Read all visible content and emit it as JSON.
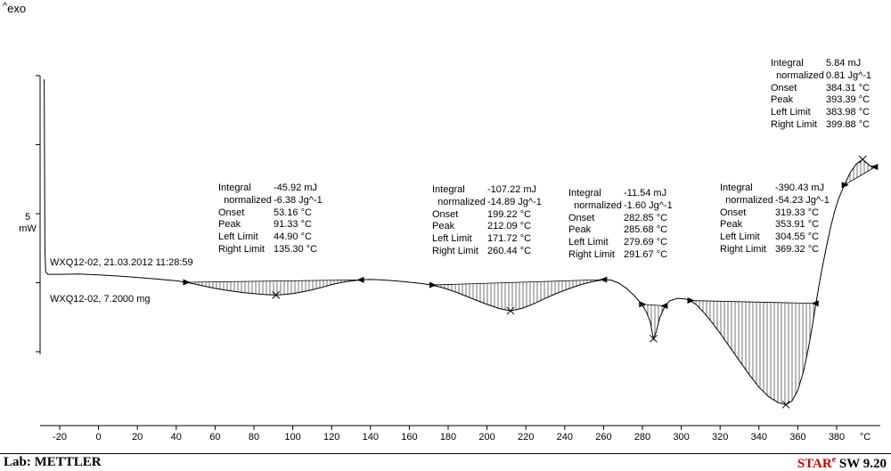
{
  "exo": {
    "caret": "^",
    "label": "exo"
  },
  "scale_bar": {
    "value": "5",
    "unit": "mW"
  },
  "sample_info": {
    "line1": "WXQ12-02, 21.03.2012 11:28:59",
    "line2": "WXQ12-02, 7.2000 mg"
  },
  "footer": {
    "lab": "Lab: METTLER",
    "software_name": "STAR",
    "software_sup": "e",
    "software_version": " SW 9.20"
  },
  "colors": {
    "star_red": "#cc0000",
    "curve": "#000000"
  },
  "annotations": [
    {
      "rows": [
        {
          "label": "Integral",
          "value": "-45.92 mJ"
        },
        {
          "label": "  normalized",
          "value": "-6.38 Jg^-1"
        },
        {
          "label": "Onset",
          "value": "53.16 °C"
        },
        {
          "label": "Peak",
          "value": "91.33 °C"
        },
        {
          "label": "Left Limit",
          "value": "44.90 °C"
        },
        {
          "label": "Right Limit",
          "value": "135.30 °C"
        }
      ]
    },
    {
      "rows": [
        {
          "label": "Integral",
          "value": "-107.22 mJ"
        },
        {
          "label": "  normalized",
          "value": "-14.89 Jg^-1"
        },
        {
          "label": "Onset",
          "value": "199.22 °C"
        },
        {
          "label": "Peak",
          "value": "212.09 °C"
        },
        {
          "label": "Left Limit",
          "value": "171.72 °C"
        },
        {
          "label": "Right Limit",
          "value": "260.44 °C"
        }
      ]
    },
    {
      "rows": [
        {
          "label": "Integral",
          "value": "-11.54 mJ"
        },
        {
          "label": "  normalized",
          "value": "-1.60 Jg^-1"
        },
        {
          "label": "Onset",
          "value": "282.85 °C"
        },
        {
          "label": "Peak",
          "value": "285.68 °C"
        },
        {
          "label": "Left Limit",
          "value": "279.69 °C"
        },
        {
          "label": "Right Limit",
          "value": "291.67 °C"
        }
      ]
    },
    {
      "rows": [
        {
          "label": "Integral",
          "value": "-390.43 mJ"
        },
        {
          "label": "  normalized",
          "value": "-54.23 Jg^-1"
        },
        {
          "label": "Onset",
          "value": "319.33 °C"
        },
        {
          "label": "Peak",
          "value": "353.91 °C"
        },
        {
          "label": "Left Limit",
          "value": "304.55 °C"
        },
        {
          "label": "Right Limit",
          "value": "369.32 °C"
        }
      ]
    },
    {
      "rows": [
        {
          "label": "Integral",
          "value": "5.84 mJ"
        },
        {
          "label": "  normalized",
          "value": "0.81 Jg^-1"
        },
        {
          "label": "Onset",
          "value": "384.31 °C"
        },
        {
          "label": "Peak",
          "value": "393.39 °C"
        },
        {
          "label": "Left Limit",
          "value": "383.98 °C"
        },
        {
          "label": "Right Limit",
          "value": "399.88 °C"
        }
      ]
    }
  ],
  "chart_data": {
    "type": "line",
    "x_unit": "°C",
    "y_unit": "mW",
    "x_range": [
      -30,
      402
    ],
    "x_ticks": [
      -20,
      0,
      20,
      40,
      60,
      80,
      100,
      120,
      140,
      160,
      180,
      200,
      220,
      240,
      260,
      280,
      300,
      320,
      340,
      360,
      380
    ],
    "y_scale_bar_mW": 5,
    "grid": false,
    "series": [
      {
        "name": "WXQ12-02 DSC",
        "points": [
          [
            -28.5,
            14.2
          ],
          [
            -28,
            14.2
          ],
          [
            -27.6,
            2.0
          ],
          [
            -27.2,
            0.3
          ],
          [
            -26,
            0.12
          ],
          [
            -20,
            0.12
          ],
          [
            -10,
            0.15
          ],
          [
            0,
            0.08
          ],
          [
            10,
            0.0
          ],
          [
            20,
            -0.1
          ],
          [
            30,
            -0.22
          ],
          [
            40,
            -0.35
          ],
          [
            44.9,
            -0.45
          ],
          [
            50,
            -0.6
          ],
          [
            55,
            -0.75
          ],
          [
            60,
            -0.9
          ],
          [
            65,
            -1.02
          ],
          [
            70,
            -1.12
          ],
          [
            75,
            -1.21
          ],
          [
            80,
            -1.28
          ],
          [
            85,
            -1.34
          ],
          [
            91.3,
            -1.38
          ],
          [
            95,
            -1.35
          ],
          [
            100,
            -1.28
          ],
          [
            105,
            -1.15
          ],
          [
            110,
            -1.0
          ],
          [
            115,
            -0.82
          ],
          [
            120,
            -0.62
          ],
          [
            125,
            -0.47
          ],
          [
            130,
            -0.36
          ],
          [
            135.3,
            -0.28
          ],
          [
            140,
            -0.25
          ],
          [
            145,
            -0.27
          ],
          [
            150,
            -0.32
          ],
          [
            155,
            -0.38
          ],
          [
            160,
            -0.45
          ],
          [
            166,
            -0.54
          ],
          [
            171.7,
            -0.65
          ],
          [
            178,
            -0.88
          ],
          [
            185,
            -1.22
          ],
          [
            192,
            -1.62
          ],
          [
            199,
            -2.0
          ],
          [
            206,
            -2.35
          ],
          [
            212.1,
            -2.52
          ],
          [
            218,
            -2.35
          ],
          [
            224,
            -2.02
          ],
          [
            230,
            -1.62
          ],
          [
            236,
            -1.25
          ],
          [
            242,
            -0.93
          ],
          [
            248,
            -0.64
          ],
          [
            254,
            -0.42
          ],
          [
            260.4,
            -0.26
          ],
          [
            264,
            -0.3
          ],
          [
            268,
            -0.52
          ],
          [
            272,
            -0.92
          ],
          [
            276,
            -1.45
          ],
          [
            279.7,
            -2.05
          ],
          [
            282,
            -2.6
          ],
          [
            284,
            -3.3
          ],
          [
            285.7,
            -4.55
          ],
          [
            287,
            -4.1
          ],
          [
            289,
            -3.0
          ],
          [
            291.7,
            -2.15
          ],
          [
            294,
            -1.8
          ],
          [
            298,
            -1.62
          ],
          [
            302,
            -1.66
          ],
          [
            304.6,
            -1.78
          ],
          [
            308,
            -2.1
          ],
          [
            312,
            -2.7
          ],
          [
            316,
            -3.4
          ],
          [
            320,
            -4.15
          ],
          [
            325,
            -5.15
          ],
          [
            330,
            -6.15
          ],
          [
            335,
            -7.15
          ],
          [
            340,
            -8.05
          ],
          [
            345,
            -8.75
          ],
          [
            350,
            -9.18
          ],
          [
            353.9,
            -9.32
          ],
          [
            357,
            -9.05
          ],
          [
            360,
            -8.3
          ],
          [
            363,
            -6.9
          ],
          [
            365.5,
            -5.2
          ],
          [
            367.5,
            -3.6
          ],
          [
            369.3,
            -2.0
          ],
          [
            371,
            -0.6
          ],
          [
            373,
            0.9
          ],
          [
            375,
            2.3
          ],
          [
            377,
            3.6
          ],
          [
            379,
            4.7
          ],
          [
            381,
            5.6
          ],
          [
            384,
            6.6
          ],
          [
            387,
            7.5
          ],
          [
            390,
            8.1
          ],
          [
            393.4,
            8.45
          ],
          [
            395,
            8.25
          ],
          [
            397,
            8.0
          ],
          [
            400,
            7.9
          ]
        ]
      }
    ],
    "peaks": [
      {
        "integral_mJ": -45.92,
        "normalized_Jg": -6.38,
        "onset_C": 53.16,
        "peak_C": 91.33,
        "left_C": 44.9,
        "right_C": 135.3
      },
      {
        "integral_mJ": -107.22,
        "normalized_Jg": -14.89,
        "onset_C": 199.22,
        "peak_C": 212.09,
        "left_C": 171.72,
        "right_C": 260.44
      },
      {
        "integral_mJ": -11.54,
        "normalized_Jg": -1.6,
        "onset_C": 282.85,
        "peak_C": 285.68,
        "left_C": 279.69,
        "right_C": 291.67
      },
      {
        "integral_mJ": -390.43,
        "normalized_Jg": -54.23,
        "onset_C": 319.33,
        "peak_C": 353.91,
        "left_C": 304.55,
        "right_C": 369.32
      },
      {
        "integral_mJ": 5.84,
        "normalized_Jg": 0.81,
        "onset_C": 384.31,
        "peak_C": 393.39,
        "left_C": 383.98,
        "right_C": 399.88
      }
    ]
  }
}
